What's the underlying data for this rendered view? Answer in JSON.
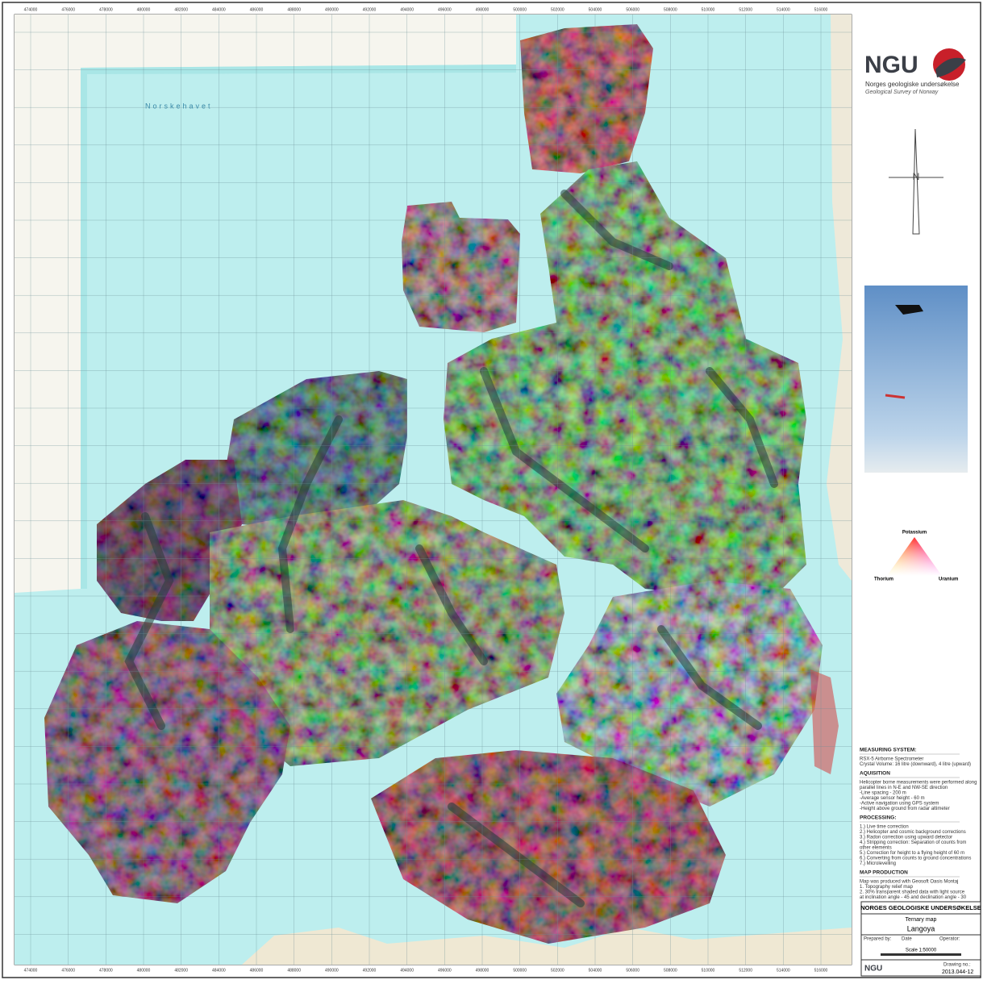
{
  "logo": {
    "mark": "NGU",
    "name": "Norges geologiske undersøkelse",
    "name_en": "Geological Survey of Norway"
  },
  "map": {
    "sea_label": "Norskehavet",
    "x_coordinates": [
      474000,
      476000,
      478000,
      480000,
      482000,
      484000,
      486000,
      488000,
      490000,
      492000,
      494000,
      496000,
      498000,
      500000,
      502000,
      504000,
      506000,
      508000,
      510000,
      512000,
      514000,
      516000
    ]
  },
  "legend": {
    "potassium": "Potassium",
    "thorium": "Thorium",
    "uranium": "Uranium"
  },
  "notes": {
    "measuring_heading": "MEASURING SYSTEM:",
    "measuring": [
      "RSX-5 Airborne Spectrometer",
      "Crystal Volume: 16 litre (downward), 4 litre (upward)"
    ],
    "aquisition_heading": "AQUISITION",
    "aquisition": [
      "Helicopter borne measurements were performed along",
      "parallel lines in N-E and NW-SE direction",
      "-Line spacing - 200 m",
      "-Average sensor height - 60 m",
      "-Active navigation using GPS system",
      "-Height above ground from radar altimeter"
    ],
    "processing_heading": "PROCESSING:",
    "processing": [
      "1.) Live time correction",
      "2.) Helicopter and cosmic background corrections",
      "3.) Radon correction using upward detector",
      "4.) Stripping correction: Separation of counts from",
      "    other elements",
      "5.) Correction for height to a flying height of 60 m",
      "6.) Converting from counts to ground concentrations",
      "7.) Microlevelling"
    ],
    "production_heading": "MAP PRODUCTION",
    "production": [
      "Map was produced with Geosoft Oasis Montaj",
      "1. Topography relief map",
      "2. 30% transparent shaded data with light source",
      "   at inclination angle - 45 and declination angle - 30"
    ]
  },
  "title_block": {
    "org": "NORGES GEOLOGISKE UNDERSØKELSE",
    "map_type": "Ternary map",
    "place": "Langoya",
    "prepared_label": "Prepared by:",
    "date_label": "Date",
    "operator_label": "Operator:",
    "scale": "Scale 1:50000",
    "drawing_label": "Drawing no.:",
    "drawing_no": "2013.044-12"
  }
}
